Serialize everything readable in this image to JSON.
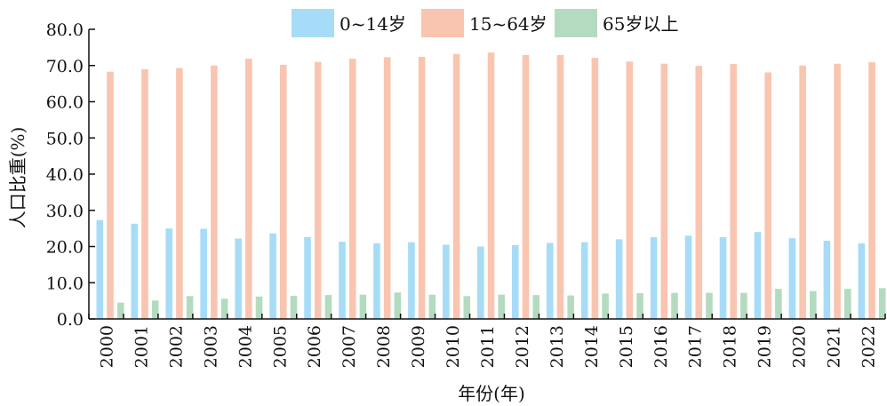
{
  "chart_data": {
    "type": "bar",
    "title": "",
    "xlabel": "年份(年)",
    "ylabel": "人口比重(%)",
    "ylim": [
      0,
      80
    ],
    "y_ticks": [
      "0.0",
      "10.0",
      "20.0",
      "30.0",
      "40.0",
      "50.0",
      "60.0",
      "70.0",
      "80.0"
    ],
    "legend_position": "top",
    "grid": false,
    "categories": [
      "2000",
      "2001",
      "2002",
      "2003",
      "2004",
      "2005",
      "2006",
      "2007",
      "2008",
      "2009",
      "2010",
      "2011",
      "2012",
      "2013",
      "2014",
      "2015",
      "2016",
      "2017",
      "2018",
      "2019",
      "2020",
      "2021",
      "2022"
    ],
    "series": [
      {
        "name": "0~14岁",
        "color": "#a6dcf7",
        "values": [
          27.3,
          26.3,
          25.0,
          24.9,
          22.2,
          23.6,
          22.6,
          21.3,
          20.9,
          21.2,
          20.5,
          20.0,
          20.4,
          21.0,
          21.2,
          22.0,
          22.6,
          23.0,
          22.6,
          24.0,
          22.3,
          21.6,
          20.9
        ]
      },
      {
        "name": "15~64岁",
        "color": "#f9c5b0",
        "values": [
          68.3,
          69.0,
          69.3,
          70.0,
          71.9,
          70.2,
          71.0,
          71.9,
          72.3,
          72.4,
          73.2,
          73.6,
          72.9,
          72.9,
          72.1,
          71.1,
          70.5,
          69.9,
          70.4,
          68.1,
          70.0,
          70.5,
          70.9
        ]
      },
      {
        "name": "65岁以上",
        "color": "#b4dbbf",
        "values": [
          4.5,
          5.1,
          6.3,
          5.6,
          6.2,
          6.4,
          6.6,
          6.7,
          7.3,
          6.7,
          6.3,
          6.7,
          6.6,
          6.5,
          7.0,
          7.1,
          7.2,
          7.2,
          7.2,
          8.3,
          7.7,
          8.3,
          8.5
        ]
      }
    ]
  }
}
